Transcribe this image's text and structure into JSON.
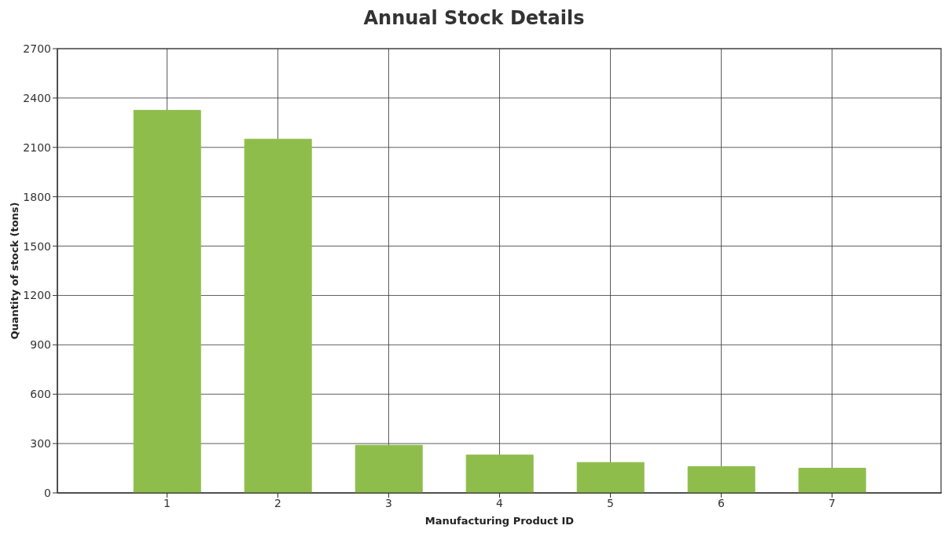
{
  "chart_data": {
    "type": "bar",
    "title": "Annual Stock Details",
    "xlabel": "Manufacturing Product ID",
    "ylabel": "Quantity of stock (tons)",
    "categories": [
      "1",
      "2",
      "3",
      "4",
      "5",
      "6",
      "7"
    ],
    "values": [
      2325,
      2150,
      290,
      230,
      185,
      160,
      150
    ],
    "color": "#8fbd4c",
    "ylim": [
      0,
      2700
    ],
    "yticks": [
      0,
      300,
      600,
      900,
      1200,
      1500,
      1800,
      2100,
      2400,
      2700
    ],
    "grid": true
  }
}
